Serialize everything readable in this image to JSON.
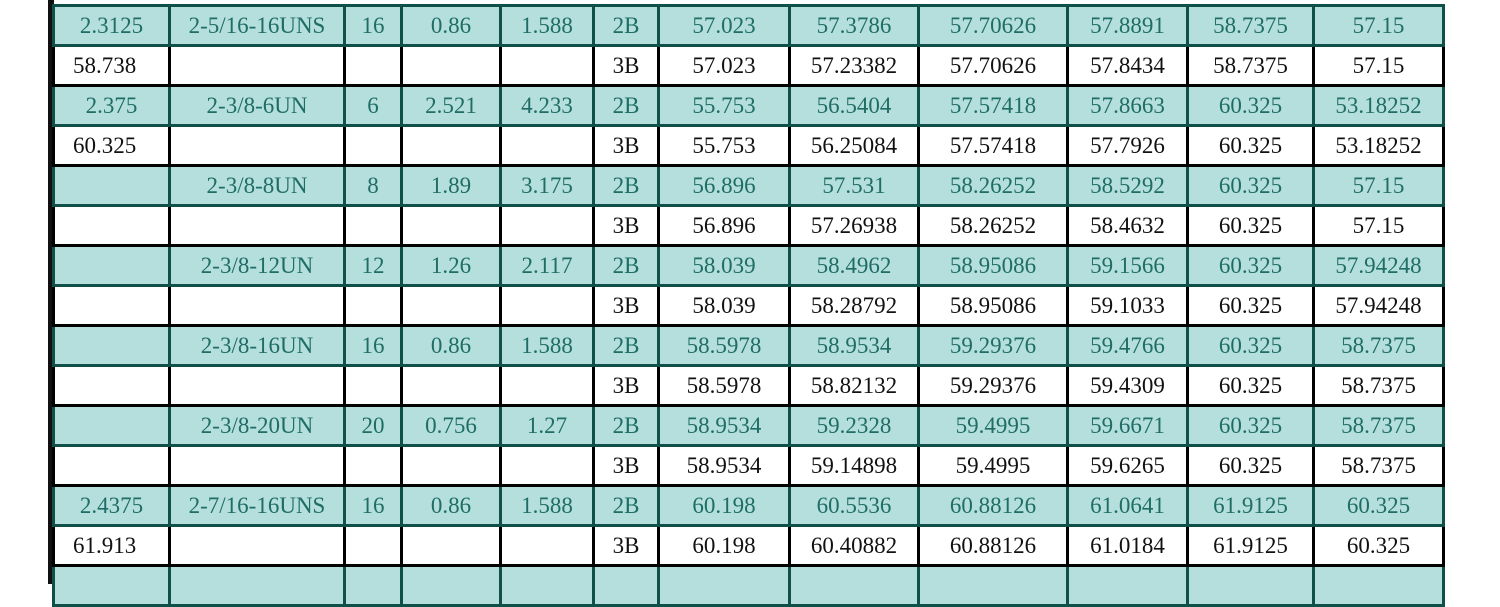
{
  "colors": {
    "teal_row_bg": "#b4dfdc",
    "teal_text": "#1f6d66",
    "border_dark": "#0f5049"
  },
  "rows": [
    {
      "style": "teal",
      "cells": [
        "2.3125",
        "2-5/16-16UNS",
        "16",
        "0.86",
        "1.588",
        "2B",
        "57.023",
        "57.3786",
        "57.70626",
        "57.8891",
        "58.7375",
        "57.15"
      ]
    },
    {
      "style": "white",
      "cells": [
        "58.738",
        "",
        "",
        "",
        "",
        "3B",
        "57.023",
        "57.23382",
        "57.70626",
        "57.8434",
        "58.7375",
        "57.15"
      ]
    },
    {
      "style": "teal",
      "cells": [
        "2.375",
        "2-3/8-6UN",
        "6",
        "2.521",
        "4.233",
        "2B",
        "55.753",
        "56.5404",
        "57.57418",
        "57.8663",
        "60.325",
        "53.18252"
      ]
    },
    {
      "style": "white",
      "cells": [
        "60.325",
        "",
        "",
        "",
        "",
        "3B",
        "55.753",
        "56.25084",
        "57.57418",
        "57.7926",
        "60.325",
        "53.18252"
      ]
    },
    {
      "style": "teal",
      "cells": [
        "",
        "2-3/8-8UN",
        "8",
        "1.89",
        "3.175",
        "2B",
        "56.896",
        "57.531",
        "58.26252",
        "58.5292",
        "60.325",
        "57.15"
      ]
    },
    {
      "style": "white",
      "cells": [
        "",
        "",
        "",
        "",
        "",
        "3B",
        "56.896",
        "57.26938",
        "58.26252",
        "58.4632",
        "60.325",
        "57.15"
      ]
    },
    {
      "style": "teal",
      "cells": [
        "",
        "2-3/8-12UN",
        "12",
        "1.26",
        "2.117",
        "2B",
        "58.039",
        "58.4962",
        "58.95086",
        "59.1566",
        "60.325",
        "57.94248"
      ]
    },
    {
      "style": "white",
      "cells": [
        "",
        "",
        "",
        "",
        "",
        "3B",
        "58.039",
        "58.28792",
        "58.95086",
        "59.1033",
        "60.325",
        "57.94248"
      ]
    },
    {
      "style": "teal",
      "cells": [
        "",
        "2-3/8-16UN",
        "16",
        "0.86",
        "1.588",
        "2B",
        "58.5978",
        "58.9534",
        "59.29376",
        "59.4766",
        "60.325",
        "58.7375"
      ]
    },
    {
      "style": "white",
      "cells": [
        "",
        "",
        "",
        "",
        "",
        "3B",
        "58.5978",
        "58.82132",
        "59.29376",
        "59.4309",
        "60.325",
        "58.7375"
      ]
    },
    {
      "style": "teal",
      "cells": [
        "",
        "2-3/8-20UN",
        "20",
        "0.756",
        "1.27",
        "2B",
        "58.9534",
        "59.2328",
        "59.4995",
        "59.6671",
        "60.325",
        "58.7375"
      ]
    },
    {
      "style": "white",
      "cells": [
        "",
        "",
        "",
        "",
        "",
        "3B",
        "58.9534",
        "59.14898",
        "59.4995",
        "59.6265",
        "60.325",
        "58.7375"
      ]
    },
    {
      "style": "teal",
      "cells": [
        "2.4375",
        "2-7/16-16UNS",
        "16",
        "0.86",
        "1.588",
        "2B",
        "60.198",
        "60.5536",
        "60.88126",
        "61.0641",
        "61.9125",
        "60.325"
      ]
    },
    {
      "style": "white",
      "cells": [
        "61.913",
        "",
        "",
        "",
        "",
        "3B",
        "60.198",
        "60.40882",
        "60.88126",
        "61.0184",
        "61.9125",
        "60.325"
      ]
    },
    {
      "style": "teal",
      "cells": [
        "",
        "",
        "",
        "",
        "",
        "",
        "",
        "",
        "",
        "",
        "",
        ""
      ]
    }
  ]
}
